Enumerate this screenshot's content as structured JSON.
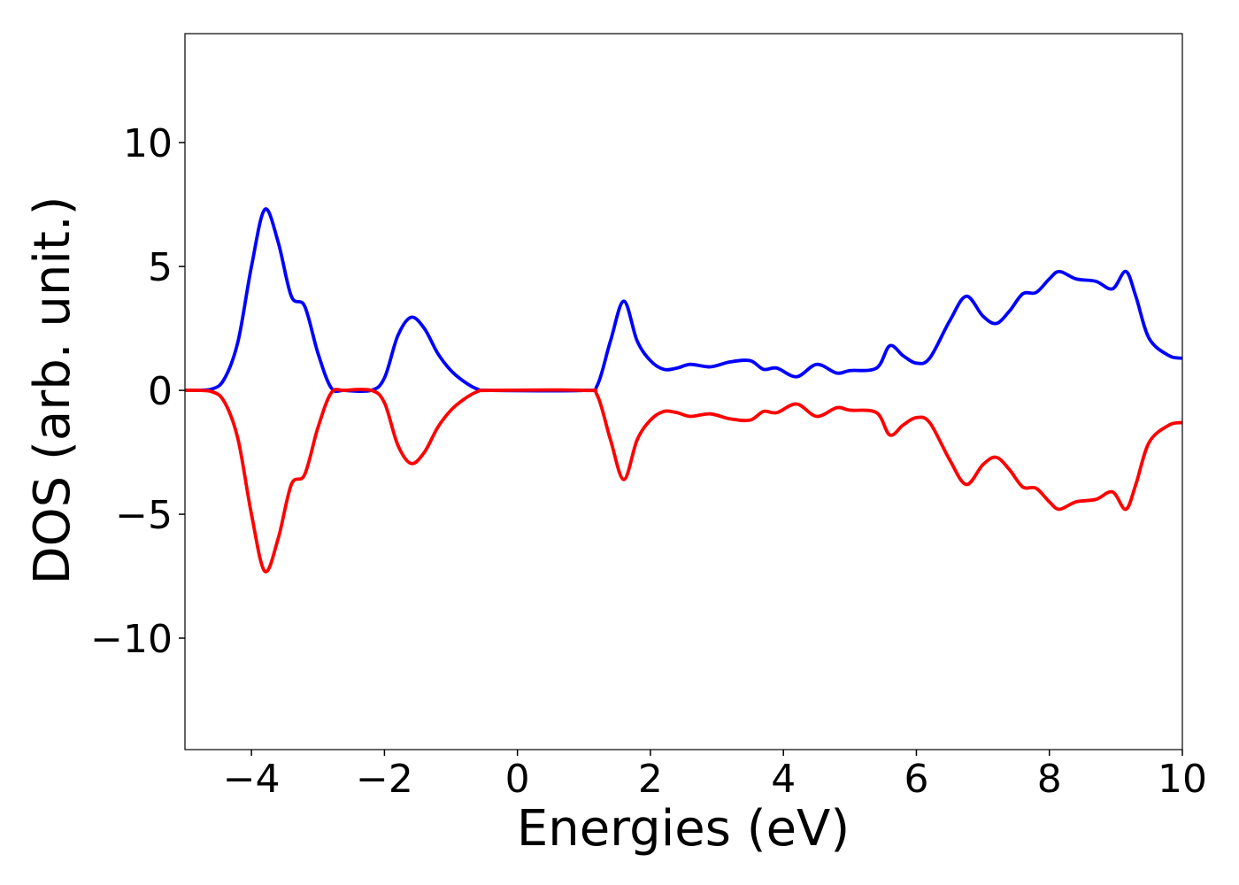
{
  "chart_data": {
    "type": "line",
    "x_label": "Energies (eV)",
    "y_label": "DOS (arb. unit.)",
    "x": [
      -5,
      -4.6,
      -4.4,
      -4.2,
      -4.0,
      -3.8,
      -3.6,
      -3.4,
      -3.2,
      -3.0,
      -2.8,
      -2.6,
      -2.2,
      -2.0,
      -1.8,
      -1.6,
      -1.4,
      -1.2,
      -1.0,
      -0.8,
      -0.6,
      -0.4,
      1.0,
      1.2,
      1.4,
      1.6,
      1.8,
      2.0,
      2.2,
      2.4,
      2.6,
      2.9,
      3.2,
      3.5,
      3.7,
      3.9,
      4.2,
      4.5,
      4.8,
      5.0,
      5.4,
      5.6,
      5.8,
      6.0,
      6.2,
      6.5,
      6.75,
      7.0,
      7.2,
      7.4,
      7.6,
      7.8,
      8.0,
      8.15,
      8.4,
      8.7,
      8.95,
      9.15,
      9.3,
      9.5,
      9.8,
      10
    ],
    "series": [
      {
        "color": "#0000ff",
        "values": [
          0,
          0.05,
          0.5,
          2,
          5,
          7.3,
          6.0,
          3.8,
          3.4,
          1.5,
          0.1,
          0,
          0,
          0.5,
          2.2,
          2.95,
          2.5,
          1.5,
          0.8,
          0.35,
          0.05,
          0,
          0,
          0.2,
          2.0,
          3.6,
          2.0,
          1.2,
          0.85,
          0.9,
          1.05,
          0.95,
          1.15,
          1.2,
          0.85,
          0.9,
          0.55,
          1.05,
          0.7,
          0.8,
          0.9,
          1.8,
          1.4,
          1.1,
          1.3,
          2.8,
          3.8,
          3.0,
          2.7,
          3.2,
          3.9,
          3.95,
          4.5,
          4.8,
          4.5,
          4.4,
          4.1,
          4.8,
          3.8,
          2.1,
          1.4,
          1.3
        ]
      },
      {
        "color": "#ff0000",
        "values": [
          0,
          -0.05,
          -0.5,
          -2,
          -5,
          -7.3,
          -6.0,
          -3.8,
          -3.4,
          -1.5,
          -0.1,
          0,
          0,
          -0.5,
          -2.2,
          -2.95,
          -2.5,
          -1.5,
          -0.8,
          -0.35,
          -0.05,
          0,
          0,
          -0.2,
          -2.0,
          -3.6,
          -2.0,
          -1.2,
          -0.85,
          -0.9,
          -1.05,
          -0.95,
          -1.15,
          -1.2,
          -0.85,
          -0.9,
          -0.55,
          -1.05,
          -0.7,
          -0.8,
          -0.9,
          -1.8,
          -1.4,
          -1.1,
          -1.3,
          -2.8,
          -3.8,
          -3.0,
          -2.7,
          -3.2,
          -3.9,
          -3.95,
          -4.5,
          -4.8,
          -4.5,
          -4.4,
          -4.1,
          -4.8,
          -3.8,
          -2.1,
          -1.4,
          -1.3
        ]
      }
    ],
    "xlim": [
      -5,
      10
    ],
    "ylim": [
      -14.5,
      14.4
    ],
    "xticks": [
      {
        "value": -4,
        "label": "−4"
      },
      {
        "value": -2,
        "label": "−2"
      },
      0,
      2,
      4,
      6,
      8,
      10
    ],
    "yticks": [
      {
        "value": -10,
        "label": "−10"
      },
      {
        "value": -5,
        "label": "−5"
      },
      0,
      5,
      10
    ],
    "grid": false
  }
}
